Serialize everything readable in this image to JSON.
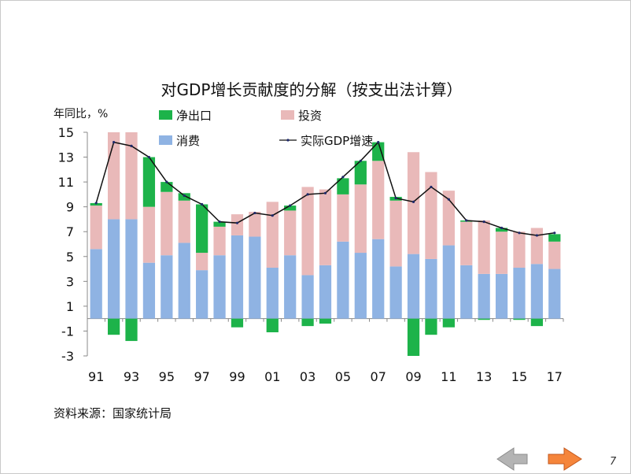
{
  "chart_data": {
    "type": "bar",
    "subtype": "stacked-bar-with-line",
    "title": "对GDP增长贡献度的分解（按支出法计算）",
    "ylabel": "年同比，%",
    "xlabel": "",
    "ylim": [
      -3,
      15
    ],
    "yticks": [
      15,
      13,
      11,
      9,
      7,
      5,
      3,
      1,
      -1,
      -3
    ],
    "years": [
      1991,
      1992,
      1993,
      1994,
      1995,
      1996,
      1997,
      1998,
      1999,
      2000,
      2001,
      2002,
      2003,
      2004,
      2005,
      2006,
      2007,
      2008,
      2009,
      2010,
      2011,
      2012,
      2013,
      2014,
      2015,
      2016,
      2017
    ],
    "xtick_labels": [
      "91",
      "",
      "93",
      "",
      "95",
      "",
      "97",
      "",
      "99",
      "",
      "01",
      "",
      "03",
      "",
      "05",
      "",
      "07",
      "",
      "09",
      "",
      "11",
      "",
      "13",
      "",
      "15",
      "",
      "17"
    ],
    "series": [
      {
        "name": "消费",
        "color": "#8fb3e3",
        "values": [
          5.6,
          8.0,
          8.0,
          4.5,
          5.1,
          6.1,
          3.9,
          5.1,
          6.7,
          6.6,
          4.1,
          5.1,
          3.5,
          4.3,
          6.2,
          5.3,
          6.4,
          4.2,
          5.2,
          4.8,
          5.9,
          4.3,
          3.6,
          3.6,
          4.1,
          4.4,
          4.0
        ]
      },
      {
        "name": "投资",
        "color": "#e9b9b9",
        "values": [
          3.5,
          7.0,
          7.0,
          4.5,
          5.1,
          3.4,
          1.4,
          2.3,
          1.7,
          2.0,
          5.3,
          3.6,
          7.1,
          6.1,
          3.8,
          5.5,
          6.3,
          5.3,
          8.2,
          7.0,
          4.4,
          3.5,
          4.3,
          3.4,
          2.9,
          2.9,
          2.2
        ]
      },
      {
        "name": "净出口",
        "color": "#1db34a",
        "values": [
          0.2,
          -1.3,
          -1.8,
          4.0,
          0.8,
          0.6,
          3.9,
          0.4,
          -0.7,
          0.0,
          -1.1,
          0.4,
          -0.6,
          -0.4,
          1.3,
          1.9,
          1.5,
          0.3,
          -3.0,
          -1.3,
          -0.7,
          0.1,
          -0.1,
          0.3,
          -0.1,
          -0.6,
          0.6
        ]
      },
      {
        "name": "实际GDP增速",
        "type": "line",
        "color": "#111111",
        "values": [
          9.3,
          14.2,
          13.9,
          13.0,
          11.0,
          9.9,
          9.2,
          7.8,
          7.7,
          8.5,
          8.3,
          9.1,
          10.0,
          10.1,
          11.4,
          12.7,
          14.2,
          9.7,
          9.4,
          10.6,
          9.6,
          7.9,
          7.8,
          7.3,
          6.9,
          6.7,
          6.9
        ]
      }
    ],
    "legend": {
      "position": "top",
      "labels": {
        "net_exports": "净出口",
        "investment": "投资",
        "consumption": "消费",
        "gdp": "实际GDP增速"
      }
    }
  },
  "footer": {
    "source": "资料来源：国家统计局",
    "page_number": "7"
  },
  "nav": {
    "prev_color": "#b4b4b4",
    "next_color": "#f5853b"
  }
}
